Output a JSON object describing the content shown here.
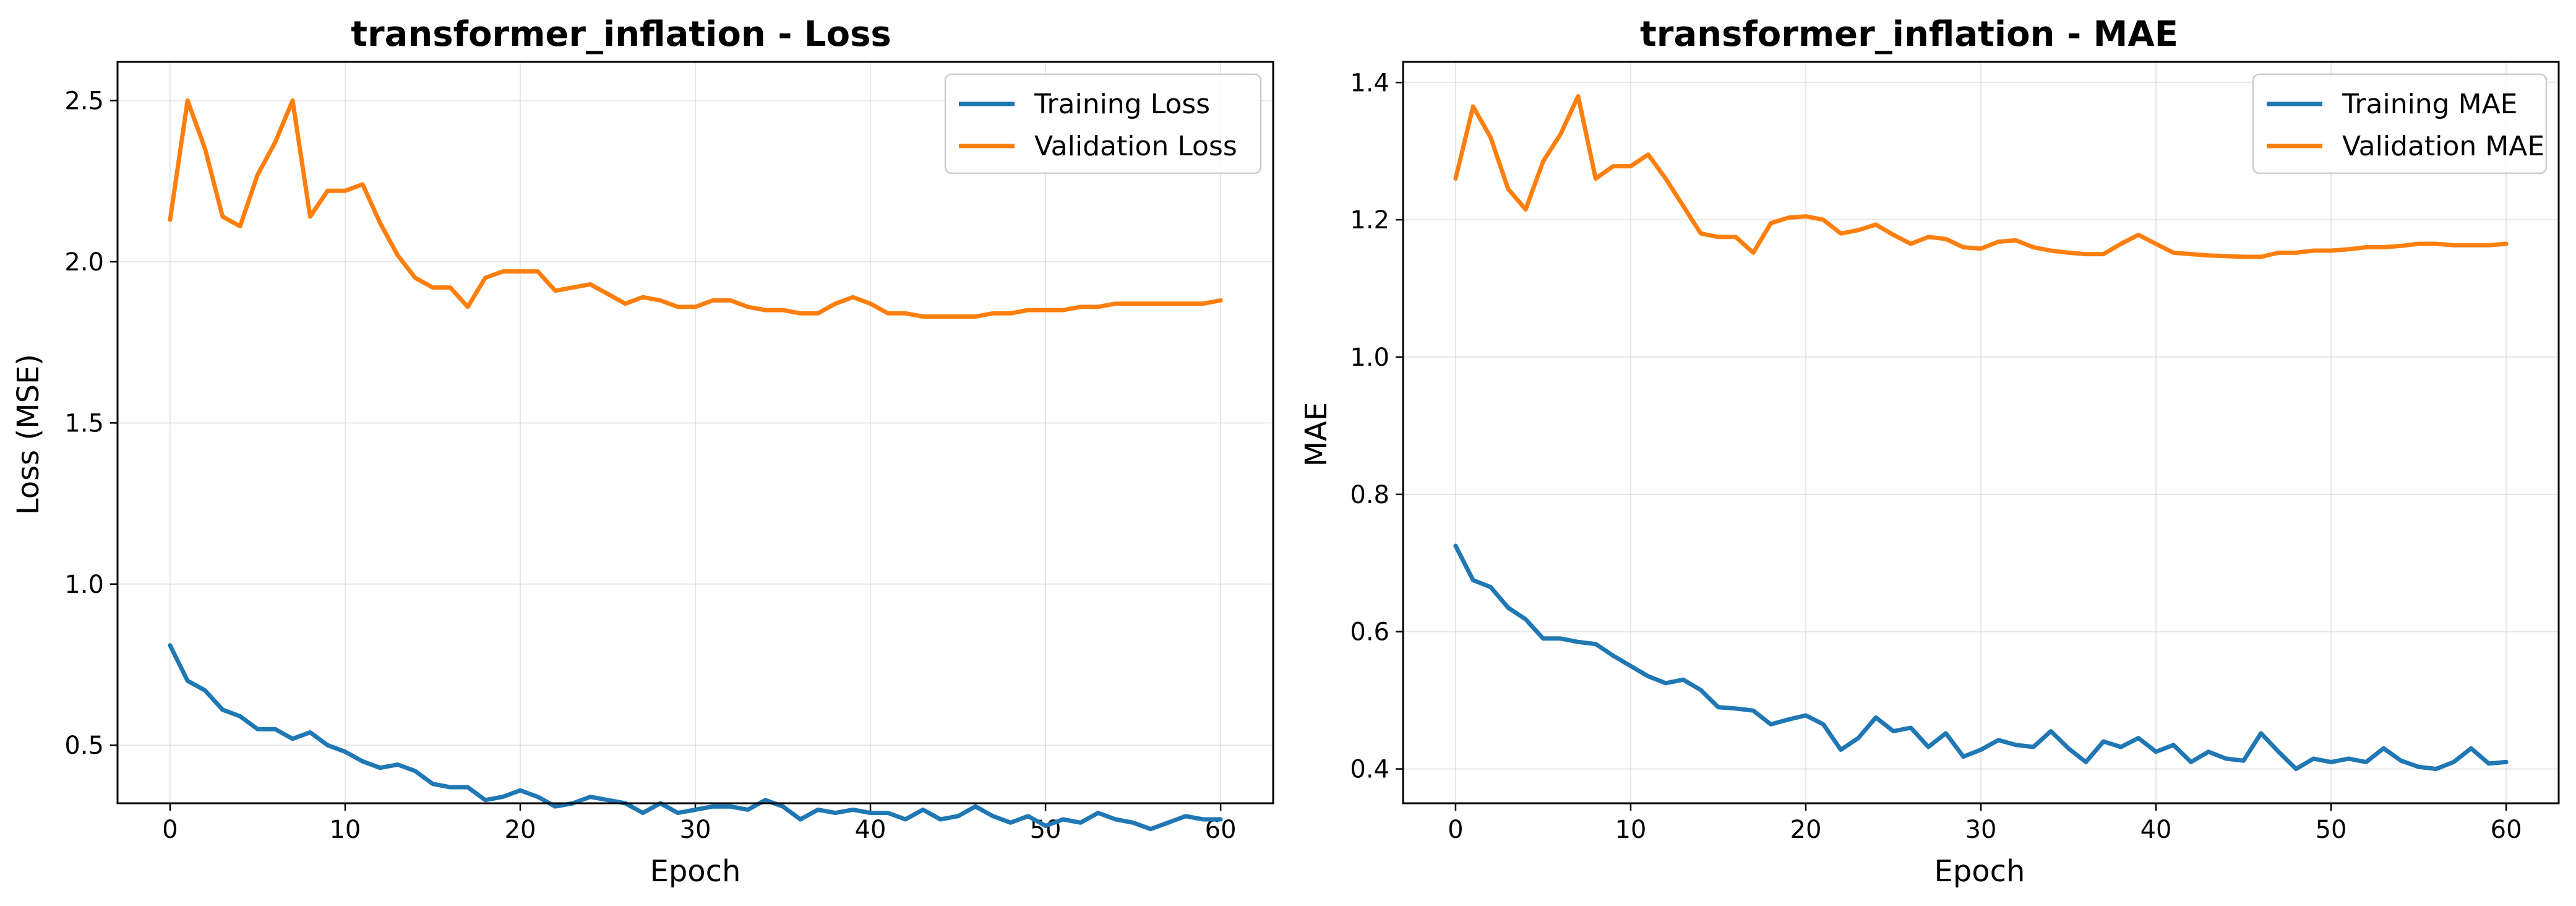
{
  "chart_data": [
    {
      "type": "line",
      "title": "transformer_inflation - Loss",
      "xlabel": "Epoch",
      "ylabel": "Loss (MSE)",
      "xlim": [
        -3,
        63
      ],
      "ylim": [
        0.32,
        2.62
      ],
      "xticks": [
        0,
        10,
        20,
        30,
        40,
        50,
        60
      ],
      "xtick_labels": [
        "0",
        "10",
        "20",
        "30",
        "40",
        "50",
        "60"
      ],
      "yticks": [
        0.5,
        1.0,
        1.5,
        2.0,
        2.5
      ],
      "ytick_labels": [
        "0.5",
        "1.0",
        "1.5",
        "2.0",
        "2.5"
      ],
      "grid": true,
      "legend_position": "top-right",
      "series": [
        {
          "name": "Training Loss",
          "color": "#1f77b4",
          "values": [
            0.81,
            0.7,
            0.67,
            0.61,
            0.59,
            0.55,
            0.55,
            0.52,
            0.54,
            0.5,
            0.48,
            0.45,
            0.43,
            0.44,
            0.42,
            0.38,
            0.37,
            0.37,
            0.33,
            0.34,
            0.36,
            0.34,
            0.31,
            0.32,
            0.34,
            0.33,
            0.32,
            0.29,
            0.32,
            0.29,
            0.3,
            0.31,
            0.31,
            0.3,
            0.33,
            0.31,
            0.27,
            0.3,
            0.29,
            0.3,
            0.29,
            0.29,
            0.27,
            0.3,
            0.27,
            0.28,
            0.31,
            0.28,
            0.26,
            0.28,
            0.25,
            0.27,
            0.26,
            0.29,
            0.27,
            0.26,
            0.24,
            0.26,
            0.28,
            0.27,
            0.27
          ]
        },
        {
          "name": "Validation Loss",
          "color": "#ff7f0e",
          "values": [
            2.13,
            2.5,
            2.35,
            2.14,
            2.11,
            2.27,
            2.37,
            2.5,
            2.14,
            2.22,
            2.22,
            2.24,
            2.12,
            2.02,
            1.95,
            1.92,
            1.92,
            1.86,
            1.95,
            1.97,
            1.97,
            1.97,
            1.91,
            1.92,
            1.93,
            1.9,
            1.87,
            1.89,
            1.88,
            1.86,
            1.86,
            1.88,
            1.88,
            1.86,
            1.85,
            1.85,
            1.84,
            1.84,
            1.87,
            1.89,
            1.87,
            1.84,
            1.84,
            1.83,
            1.83,
            1.83,
            1.83,
            1.84,
            1.84,
            1.85,
            1.85,
            1.85,
            1.86,
            1.86,
            1.87,
            1.87,
            1.87,
            1.87,
            1.87,
            1.87,
            1.88
          ]
        }
      ]
    },
    {
      "type": "line",
      "title": "transformer_inflation - MAE",
      "xlabel": "Epoch",
      "ylabel": "MAE",
      "xlim": [
        -3,
        63
      ],
      "ylim": [
        0.35,
        1.43
      ],
      "xticks": [
        0,
        10,
        20,
        30,
        40,
        50,
        60
      ],
      "xtick_labels": [
        "0",
        "10",
        "20",
        "30",
        "40",
        "50",
        "60"
      ],
      "yticks": [
        0.4,
        0.6,
        0.8,
        1.0,
        1.2,
        1.4
      ],
      "ytick_labels": [
        "0.4",
        "0.6",
        "0.8",
        "1.0",
        "1.2",
        "1.4"
      ],
      "grid": true,
      "legend_position": "top-right",
      "series": [
        {
          "name": "Training MAE",
          "color": "#1f77b4",
          "values": [
            0.725,
            0.675,
            0.665,
            0.635,
            0.618,
            0.59,
            0.59,
            0.585,
            0.582,
            0.565,
            0.55,
            0.535,
            0.525,
            0.53,
            0.515,
            0.49,
            0.488,
            0.485,
            0.465,
            0.472,
            0.478,
            0.465,
            0.428,
            0.445,
            0.475,
            0.455,
            0.46,
            0.432,
            0.452,
            0.418,
            0.428,
            0.442,
            0.435,
            0.432,
            0.455,
            0.43,
            0.41,
            0.44,
            0.432,
            0.445,
            0.425,
            0.435,
            0.41,
            0.425,
            0.415,
            0.412,
            0.452,
            0.425,
            0.4,
            0.415,
            0.41,
            0.415,
            0.41,
            0.43,
            0.412,
            0.403,
            0.4,
            0.41,
            0.43,
            0.408,
            0.41
          ]
        },
        {
          "name": "Validation MAE",
          "color": "#ff7f0e",
          "values": [
            1.26,
            1.365,
            1.32,
            1.245,
            1.215,
            1.285,
            1.325,
            1.38,
            1.26,
            1.278,
            1.278,
            1.295,
            1.26,
            1.22,
            1.18,
            1.175,
            1.175,
            1.152,
            1.195,
            1.203,
            1.205,
            1.2,
            1.18,
            1.185,
            1.193,
            1.178,
            1.165,
            1.175,
            1.172,
            1.16,
            1.158,
            1.168,
            1.17,
            1.16,
            1.155,
            1.152,
            1.15,
            1.15,
            1.165,
            1.178,
            1.165,
            1.152,
            1.15,
            1.148,
            1.147,
            1.146,
            1.146,
            1.152,
            1.152,
            1.155,
            1.155,
            1.157,
            1.16,
            1.16,
            1.162,
            1.165,
            1.165,
            1.163,
            1.163,
            1.163,
            1.165
          ]
        }
      ]
    }
  ]
}
